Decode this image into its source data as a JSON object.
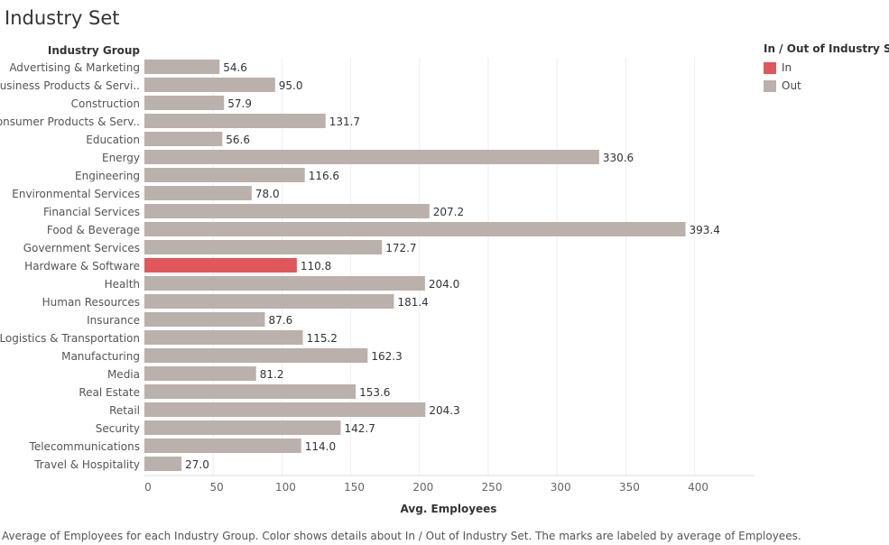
{
  "page": {
    "title": "Industry Set",
    "caption": "Average of Employees for each Industry Group.  Color shows details about In / Out of Industry Set.  The marks are labeled by average of Employees."
  },
  "legend": {
    "title": "In / Out of Industry Set",
    "items": [
      {
        "label": "In",
        "color": "#e15759"
      },
      {
        "label": "Out",
        "color": "#bab0ac"
      }
    ]
  },
  "chart_data": {
    "type": "bar",
    "orientation": "horizontal",
    "row_header": "Industry Group",
    "xlabel": "Avg. Employees",
    "xlim": [
      0,
      400
    ],
    "xticks": [
      0,
      50,
      100,
      150,
      200,
      250,
      300,
      350,
      400
    ],
    "grid": "vertical",
    "legend_position": "top-right",
    "categories": [
      "Advertising & Marketing",
      "Business Products & Servi..",
      "Construction",
      "Consumer Products & Serv..",
      "Education",
      "Energy",
      "Engineering",
      "Environmental Services",
      "Financial Services",
      "Food & Beverage",
      "Government Services",
      "Hardware & Software",
      "Health",
      "Human Resources",
      "Insurance",
      "Logistics & Transportation",
      "Manufacturing",
      "Media",
      "Real Estate",
      "Retail",
      "Security",
      "Telecommunications",
      "Travel & Hospitality"
    ],
    "values": [
      54.6,
      95.0,
      57.9,
      131.7,
      56.6,
      330.6,
      116.6,
      78.0,
      207.2,
      393.4,
      172.7,
      110.8,
      204.0,
      181.4,
      87.6,
      115.2,
      162.3,
      81.2,
      153.6,
      204.3,
      142.7,
      114.0,
      27.0
    ],
    "labels": [
      "54.6",
      "95.0",
      "57.9",
      "131.7",
      "56.6",
      "330.6",
      "116.6",
      "78.0",
      "207.2",
      "393.4",
      "172.7",
      "110.8",
      "204.0",
      "181.4",
      "87.6",
      "115.2",
      "162.3",
      "81.2",
      "153.6",
      "204.3",
      "142.7",
      "114.0",
      "27.0"
    ],
    "set_membership": [
      "Out",
      "Out",
      "Out",
      "Out",
      "Out",
      "Out",
      "Out",
      "Out",
      "Out",
      "Out",
      "Out",
      "In",
      "Out",
      "Out",
      "Out",
      "Out",
      "Out",
      "Out",
      "Out",
      "Out",
      "Out",
      "Out",
      "Out"
    ]
  }
}
